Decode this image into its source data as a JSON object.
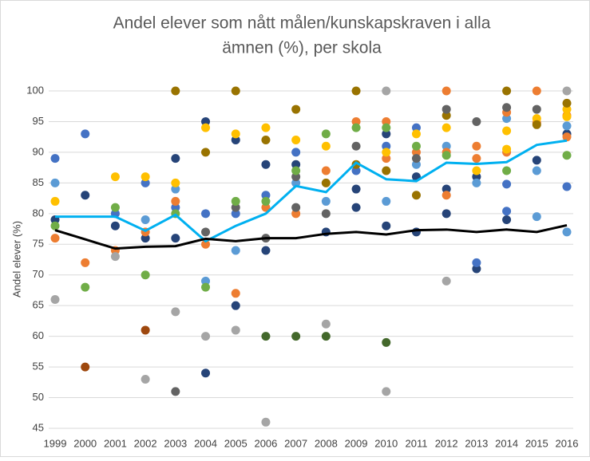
{
  "chart_data": {
    "type": "scatter",
    "title": [
      "Andel elever som nått målen/kunskapskraven i alla",
      "ämnen (%), per skola"
    ],
    "y_label": "Andel elever (%)",
    "xlim": [
      1999,
      2016
    ],
    "xticks": [
      1999,
      2000,
      2001,
      2002,
      2003,
      2004,
      2005,
      2006,
      2007,
      2008,
      2009,
      2010,
      2011,
      2012,
      2013,
      2014,
      2015,
      2016
    ],
    "ylim": [
      45,
      100
    ],
    "yticks": [
      45,
      50,
      55,
      60,
      65,
      70,
      75,
      80,
      85,
      90,
      95,
      100
    ],
    "grid": true,
    "x": [
      1999,
      2000,
      2001,
      2002,
      2003,
      2004,
      2005,
      2006,
      2007,
      2008,
      2009,
      2010,
      2011,
      2012,
      2013,
      2014,
      2015,
      2016
    ],
    "series": [
      {
        "color": "#264478",
        "x": [
          1999,
          2000,
          2001,
          2002,
          2003,
          2003,
          2004,
          2004,
          2005,
          2005,
          2006,
          2006,
          2007,
          2008,
          2009,
          2009,
          2010,
          2010,
          2011,
          2011,
          2012,
          2012,
          2013,
          2013,
          2014,
          2015,
          2016
        ],
        "values": [
          79,
          83,
          78,
          76,
          89,
          76,
          95,
          54,
          92,
          65,
          88,
          74,
          88,
          77,
          84,
          81,
          93,
          78,
          86,
          77,
          84,
          80,
          86,
          71,
          79,
          88.7,
          93
        ]
      },
      {
        "color": "#4472c4",
        "x": [
          1999,
          2000,
          2001,
          2002,
          2003,
          2004,
          2005,
          2006,
          2007,
          2009,
          2010,
          2011,
          2013,
          2014,
          2014,
          2016
        ],
        "values": [
          89,
          93,
          80,
          85,
          81,
          80,
          80,
          83,
          90,
          87,
          91,
          94,
          72,
          84.8,
          80.4,
          84.4
        ]
      },
      {
        "color": "#5b9bd5",
        "x": [
          1999,
          2002,
          2003,
          2004,
          2005,
          2007,
          2008,
          2010,
          2011,
          2012,
          2013,
          2014,
          2015,
          2015,
          2016,
          2016
        ],
        "values": [
          85,
          79,
          84,
          69,
          74,
          85,
          82,
          82,
          88,
          91,
          85,
          95.5,
          87,
          79.5,
          94.3,
          77
        ]
      },
      {
        "color": "#ed7d31",
        "x": [
          1999,
          2000,
          2001,
          2002,
          2003,
          2004,
          2005,
          2006,
          2007,
          2008,
          2009,
          2010,
          2010,
          2011,
          2012,
          2012,
          2012,
          2013,
          2013,
          2014,
          2014,
          2015,
          2015,
          2016,
          2016
        ],
        "values": [
          76,
          72,
          74,
          77,
          82,
          75,
          67,
          81,
          80,
          87,
          95,
          95,
          89,
          90,
          100,
          90,
          83,
          91,
          89,
          96.5,
          90,
          100,
          94.8,
          96,
          92.5
        ]
      },
      {
        "color": "#ffc000",
        "x": [
          1999,
          2001,
          2002,
          2003,
          2004,
          2005,
          2006,
          2007,
          2008,
          2010,
          2011,
          2012,
          2013,
          2014,
          2014,
          2015,
          2016,
          2016
        ],
        "values": [
          82,
          86,
          86,
          85,
          94,
          93,
          94,
          92,
          91,
          90,
          93,
          94,
          87,
          93.5,
          90.5,
          95.5,
          97,
          95.8
        ]
      },
      {
        "color": "#997300",
        "x": [
          2003,
          2004,
          2005,
          2006,
          2007,
          2008,
          2009,
          2009,
          2010,
          2011,
          2012,
          2014,
          2015,
          2016
        ],
        "values": [
          100,
          90,
          100,
          92,
          97,
          85,
          100,
          88,
          87,
          83,
          96,
          100,
          94.5,
          98
        ]
      },
      {
        "color": "#a5a5a5",
        "x": [
          1999,
          2001,
          2002,
          2003,
          2004,
          2005,
          2006,
          2008,
          2010,
          2010,
          2012,
          2016
        ],
        "values": [
          66,
          73,
          53,
          64,
          60,
          61,
          46,
          62,
          100,
          51,
          69,
          100
        ]
      },
      {
        "color": "#636363",
        "x": [
          2003,
          2004,
          2005,
          2006,
          2007,
          2007,
          2008,
          2009,
          2011,
          2012,
          2013,
          2014,
          2015
        ],
        "values": [
          51,
          77,
          81,
          76,
          86,
          81,
          80,
          91,
          89,
          97,
          95,
          97.3,
          97
        ]
      },
      {
        "color": "#70ad47",
        "x": [
          1999,
          2000,
          2001,
          2002,
          2003,
          2004,
          2005,
          2006,
          2007,
          2008,
          2009,
          2010,
          2011,
          2012,
          2014,
          2016
        ],
        "values": [
          78,
          68,
          81,
          70,
          80,
          68,
          82,
          82,
          87,
          93,
          94,
          94,
          91,
          89.5,
          87,
          89.5
        ]
      },
      {
        "color": "#43682b",
        "x": [
          2006,
          2007,
          2008,
          2010
        ],
        "values": [
          60,
          60,
          60,
          59
        ]
      },
      {
        "color": "#9e480e",
        "x": [
          2000,
          2002
        ],
        "values": [
          55,
          61
        ]
      },
      {
        "type": "line",
        "color": "#00b0f0",
        "values": [
          79.5,
          79.5,
          79.5,
          77.2,
          79.8,
          75.5,
          78,
          80,
          84.5,
          83.5,
          88.3,
          85.6,
          85.3,
          88.3,
          88.1,
          88.4,
          91.2,
          91.9
        ]
      },
      {
        "type": "line",
        "color": "#000000",
        "values": [
          77.3,
          75.8,
          74.3,
          74.6,
          74.7,
          75.9,
          75.5,
          76,
          76,
          76.7,
          77,
          76.6,
          77.3,
          77.4,
          77,
          77.4,
          77,
          78.1
        ]
      }
    ]
  }
}
